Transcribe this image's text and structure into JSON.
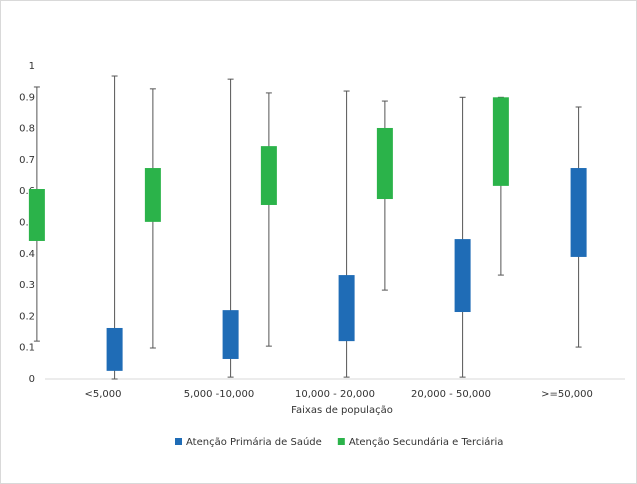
{
  "chart_data": {
    "type": "box",
    "xlabel": "Faixas de população",
    "categories": [
      "<5,000",
      "5,000 -10,000",
      "10,000 - 20,000",
      "20,000 - 50,000",
      ">=50,000"
    ],
    "series": [
      {
        "name": "Atenção Primária de Saúde",
        "color": "#1f6cb6",
        "min": [
          0,
          0.006,
          0.006,
          0.006,
          0.102
        ],
        "q1": [
          0.026,
          0.064,
          0.121,
          0.214,
          0.39
        ],
        "q3": [
          0.163,
          0.22,
          0.332,
          0.447,
          0.674
        ],
        "max": [
          0.968,
          0.958,
          0.92,
          0.9,
          0.869
        ]
      },
      {
        "name": "Atenção Secundária e Terciária",
        "color": "#2bb34a",
        "min": [
          0.121,
          0.099,
          0.105,
          0.284,
          0.332
        ],
        "q1": [
          0.441,
          0.502,
          0.556,
          0.575,
          0.617
        ],
        "q3": [
          0.607,
          0.674,
          0.744,
          0.802,
          0.9
        ],
        "max": [
          0.933,
          0.927,
          0.914,
          0.888,
          0.9
        ]
      }
    ],
    "ylim": [
      0,
      1
    ],
    "yticks": [
      0,
      0.1,
      0.2,
      0.3,
      0.4,
      0.5,
      0.6,
      0.7,
      0.8,
      0.9,
      1
    ],
    "legend": "bottom"
  }
}
